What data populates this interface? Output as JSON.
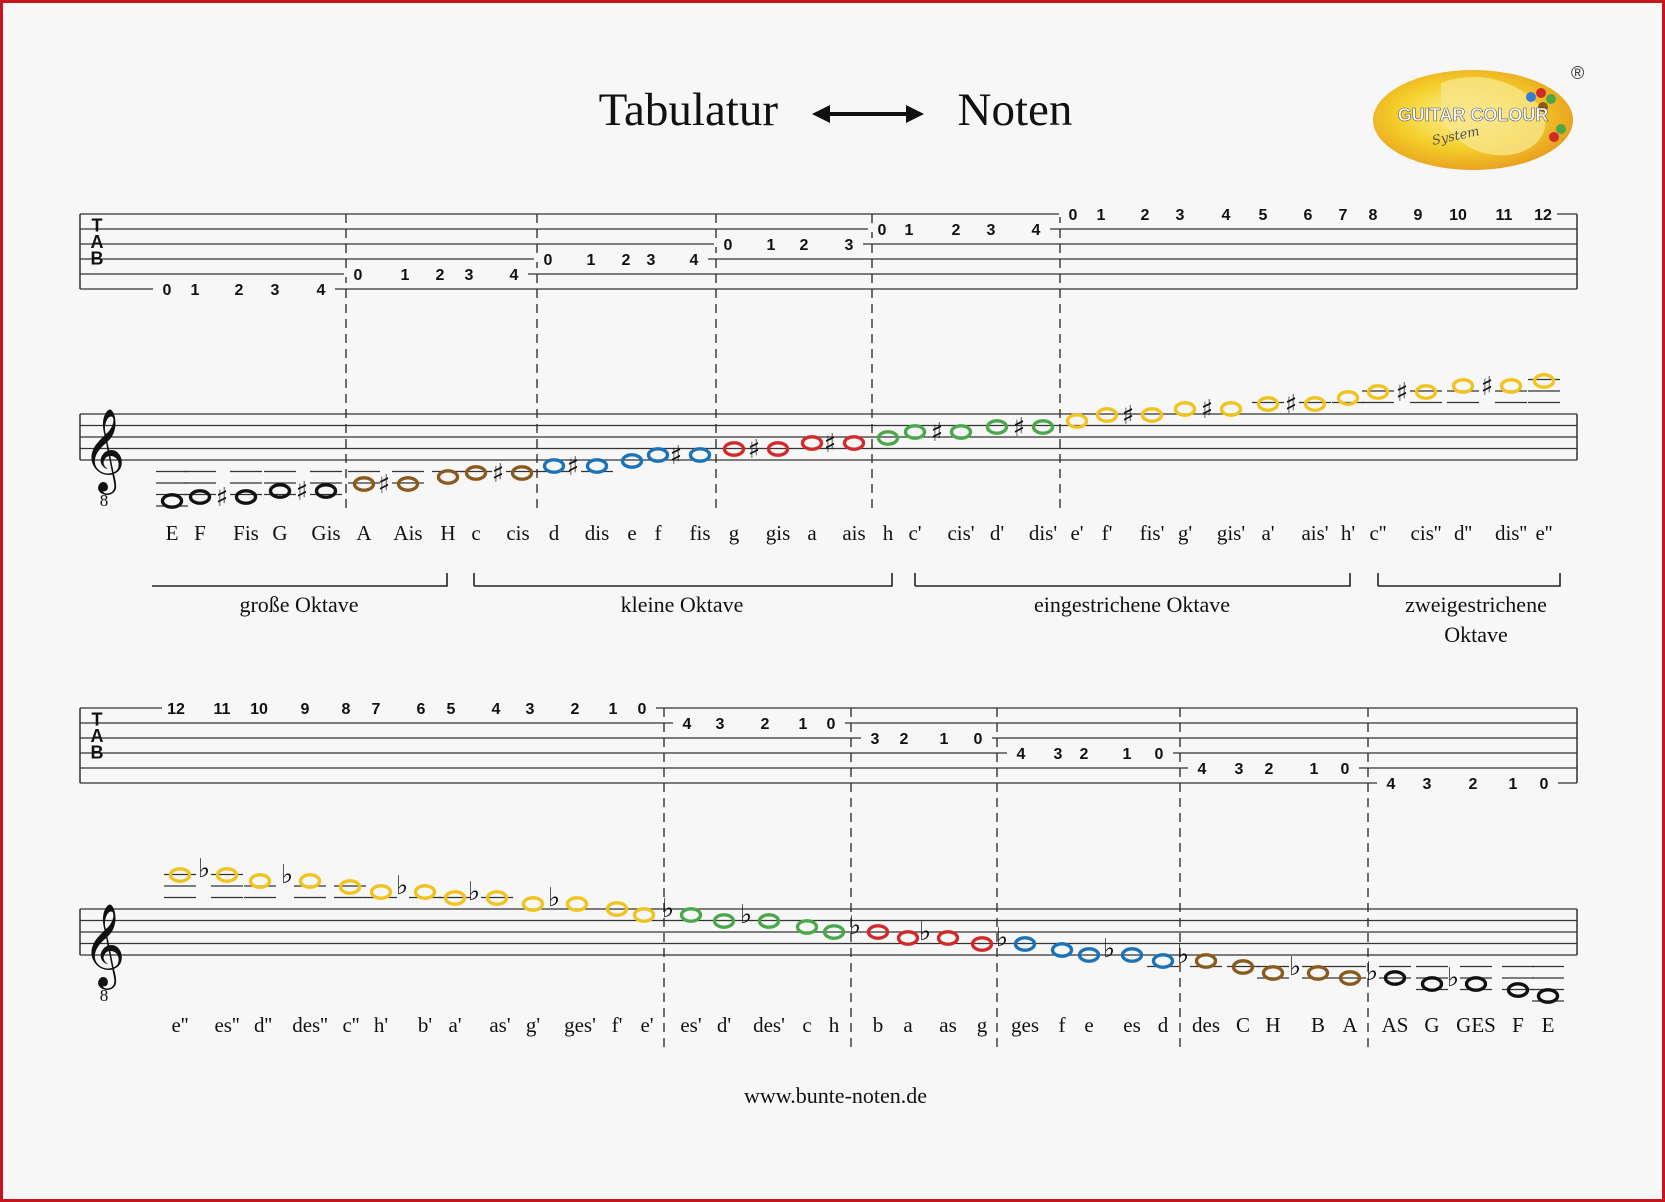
{
  "title": {
    "left": "Tabulatur",
    "right": "Noten"
  },
  "logo": {
    "brand": "GUITAR COLOUR",
    "sub": "System",
    "mark": "®"
  },
  "website": "www.bunte-noten.de",
  "tab_letters": [
    "T",
    "A",
    "B"
  ],
  "clef_octave": "8",
  "colors": {
    "brown": "#8a5a1c",
    "blue": "#1a73b8",
    "red": "#d22a2a",
    "green": "#4aa84a",
    "yellow": "#f0c31e",
    "black": "#111111"
  },
  "ascending": {
    "tab": [
      [
        [
          "0",
          "1",
          "2",
          "3",
          "4"
        ]
      ],
      [
        [
          "0",
          "1",
          "2",
          "3",
          "4"
        ]
      ],
      [
        [
          "0",
          "1",
          "2",
          "3",
          "4"
        ]
      ],
      [
        [
          "0",
          "1",
          "2",
          "3"
        ]
      ],
      [
        [
          "0",
          "1",
          "2",
          "3",
          "4"
        ]
      ],
      [
        [
          "0",
          "1",
          "2",
          "3",
          "4",
          "5",
          "6",
          "7",
          "8",
          "9",
          "10",
          "11",
          "12"
        ]
      ]
    ],
    "note_names": [
      "E",
      "F",
      "Fis",
      "G",
      "Gis",
      "A",
      "Ais",
      "H",
      "c",
      "cis",
      "d",
      "dis",
      "e",
      "f",
      "fis",
      "g",
      "gis",
      "a",
      "ais",
      "h",
      "c'",
      "cis'",
      "d'",
      "dis'",
      "e'",
      "f'",
      "fis'",
      "g'",
      "gis'",
      "a'",
      "ais'",
      "h'",
      "c''",
      "cis''",
      "d''",
      "dis''",
      "e''"
    ],
    "octaves": [
      {
        "label": "große Oktave"
      },
      {
        "label": "kleine Oktave"
      },
      {
        "label": "eingestrichene Oktave"
      },
      {
        "label": "zweigestrichene Oktave",
        "lines": [
          "zweigestrichene",
          "Oktave"
        ]
      }
    ]
  },
  "descending": {
    "tab": [
      "12",
      "11",
      "10",
      "9",
      "8",
      "7",
      "6",
      "5",
      "4",
      "3",
      "2",
      "1",
      "0",
      "4",
      "3",
      "2",
      "1",
      "0",
      "3",
      "2",
      "1",
      "0",
      "4",
      "3",
      "2",
      "1",
      "0",
      "4",
      "3",
      "2",
      "1",
      "0",
      "4",
      "3",
      "2",
      "1",
      "0"
    ],
    "note_names": [
      "e''",
      "es''",
      "d''",
      "des''",
      "c''",
      "h'",
      "b'",
      "a'",
      "as'",
      "g'",
      "ges'",
      "f'",
      "e'",
      "es'",
      "d'",
      "des'",
      "c",
      "h",
      "b",
      "a",
      "as",
      "g",
      "ges",
      "f",
      "e",
      "es",
      "d",
      "des",
      "C",
      "H",
      "B",
      "A",
      "AS",
      "G",
      "GES",
      "F",
      "E"
    ]
  }
}
